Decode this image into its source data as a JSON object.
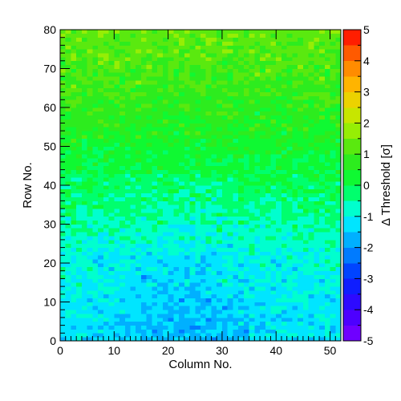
{
  "chart_data": {
    "type": "heatmap",
    "title": "",
    "xlabel": "Column No.",
    "ylabel": "Row No.",
    "zlabel": "Δ Threshold [σ]",
    "xlim": [
      0,
      52
    ],
    "ylim": [
      0,
      80
    ],
    "zlim": [
      -5,
      5
    ],
    "n_columns": 52,
    "n_rows": 80,
    "x_ticks": [
      "0",
      "10",
      "20",
      "30",
      "40",
      "50"
    ],
    "y_ticks": [
      "0",
      "10",
      "20",
      "30",
      "40",
      "50",
      "60",
      "70",
      "80"
    ],
    "z_ticks": [
      "-5",
      "-4",
      "-3",
      "-2",
      "-1",
      "0",
      "1",
      "2",
      "3",
      "4",
      "5"
    ],
    "value_model": {
      "description": "per-pixel delta threshold, approx. -1.5 at bottom-center rising to ~+1.3 at top",
      "base_by_row": [
        [
          0,
          -1.2
        ],
        [
          20,
          -0.9
        ],
        [
          40,
          -0.1
        ],
        [
          55,
          0.6
        ],
        [
          80,
          1.3
        ]
      ],
      "center_column": 22,
      "center_dip": -0.5,
      "noise_sigma": 0.45
    },
    "grid": false,
    "legend": "colorbar-right"
  }
}
